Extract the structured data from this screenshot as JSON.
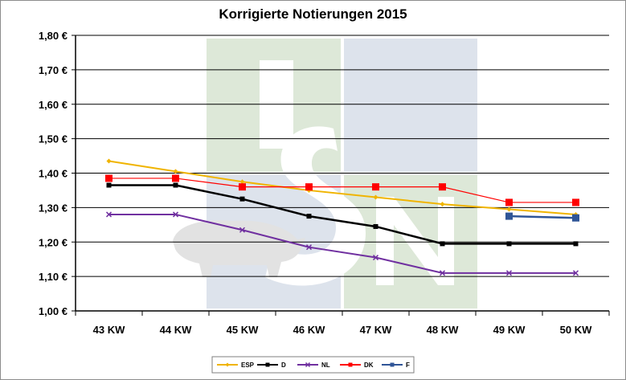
{
  "chart_data": {
    "type": "line",
    "title": "Korrigierte Notierungen 2015",
    "categories": [
      "43 KW",
      "44 KW",
      "45 KW",
      "46 KW",
      "47 KW",
      "48 KW",
      "49 KW",
      "50 KW"
    ],
    "y_tick_labels": [
      "1,00 €",
      "1,10 €",
      "1,20 €",
      "1,30 €",
      "1,40 €",
      "1,50 €",
      "1,60 €",
      "1,70 €",
      "1,80 €"
    ],
    "ylim": [
      1.0,
      1.8
    ],
    "grid": true,
    "legend_position": "bottom",
    "series": [
      {
        "name": "ESP",
        "color": "#f0b400",
        "marker": "diamond",
        "values": [
          1.435,
          1.405,
          1.375,
          1.35,
          1.33,
          1.31,
          1.295,
          1.28
        ]
      },
      {
        "name": "D",
        "color": "#000000",
        "marker": "square",
        "values": [
          1.365,
          1.365,
          1.325,
          1.275,
          1.245,
          1.195,
          1.195,
          1.195
        ]
      },
      {
        "name": "NL",
        "color": "#7030a0",
        "marker": "cross",
        "values": [
          1.28,
          1.28,
          1.235,
          1.185,
          1.155,
          1.11,
          1.11,
          1.11
        ]
      },
      {
        "name": "DK",
        "color": "#ff0000",
        "marker": "square",
        "values": [
          1.385,
          1.385,
          1.36,
          1.36,
          1.36,
          1.36,
          1.315,
          1.315
        ]
      },
      {
        "name": "F",
        "color": "#2f5597",
        "marker": "square",
        "values": [
          null,
          null,
          null,
          null,
          null,
          null,
          1.275,
          1.27
        ]
      }
    ]
  },
  "watermark": {
    "text": "ISN",
    "colors": [
      "#dde8d8",
      "#dde3ec",
      "#e2e2e2"
    ]
  }
}
